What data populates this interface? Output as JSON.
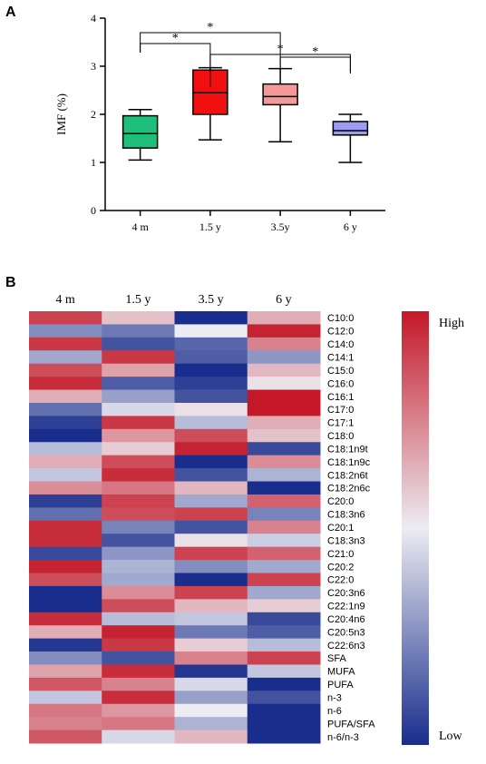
{
  "panels": {
    "a": "A",
    "b": "B"
  },
  "chart_data": [
    {
      "type": "box",
      "ylabel": "IMF (%)",
      "ylim": [
        0,
        4
      ],
      "yticks": [
        "0",
        "1",
        "2",
        "3",
        "4"
      ],
      "categories": [
        "4 m",
        "1.5 y",
        "3.5y",
        "6 y"
      ],
      "boxes": [
        {
          "min": 1.05,
          "q1": 1.3,
          "median": 1.6,
          "q3": 1.97,
          "max": 2.1,
          "color": "#1dbf7b"
        },
        {
          "min": 1.47,
          "q1": 2.0,
          "median": 2.45,
          "q3": 2.92,
          "max": 2.97,
          "color": "#f01010"
        },
        {
          "min": 1.43,
          "q1": 2.2,
          "median": 2.37,
          "q3": 2.63,
          "max": 2.95,
          "color": "#f49898"
        },
        {
          "min": 1.0,
          "q1": 1.57,
          "median": 1.66,
          "q3": 1.85,
          "max": 2.0,
          "color": "#9c9cf2"
        }
      ],
      "significance": [
        {
          "from": 0,
          "to": 1,
          "label": "*"
        },
        {
          "from": 0,
          "to": 2,
          "label": "*"
        },
        {
          "from": 1,
          "to": 3,
          "label": "*"
        },
        {
          "from": 2,
          "to": 3,
          "label": "*"
        }
      ]
    },
    {
      "type": "heatmap",
      "columns": [
        "4 m",
        "1.5 y",
        "3.5 y",
        "6 y"
      ],
      "rows": [
        "C10:0",
        "C12:0",
        "C14:0",
        "C14:1",
        "C15:0",
        "C16:0",
        "C16:1",
        "C17:0",
        "C17:1",
        "C18:0",
        "C18:1n9t",
        "C18:1n9c",
        "C18:2n6t",
        "C18:2n6c",
        "C20:0",
        "C18:3n6",
        "C20:1",
        "C18:3n3",
        "C21:0",
        "C20:2",
        "C22:0",
        "C20:3n6",
        "C22:1n9",
        "C20:4n6",
        "C20:5n3",
        "C22:6n3",
        "SFA",
        "MUFA",
        "PUFA",
        "n-3",
        "n-6",
        "PUFA/SFA",
        "n-6/n-3"
      ],
      "values": [
        [
          0.8,
          0.2,
          -1.0,
          0.3
        ],
        [
          -0.5,
          -0.6,
          0.0,
          0.95
        ],
        [
          0.85,
          -0.8,
          -0.7,
          0.5
        ],
        [
          -0.35,
          0.85,
          -0.75,
          -0.45
        ],
        [
          0.75,
          0.35,
          -1.0,
          0.25
        ],
        [
          0.9,
          -0.75,
          -0.9,
          0.05
        ],
        [
          0.3,
          -0.4,
          -0.8,
          1.0
        ],
        [
          -0.65,
          -0.1,
          0.05,
          1.0
        ],
        [
          -0.9,
          0.85,
          -0.25,
          0.3
        ],
        [
          -1.0,
          0.4,
          0.75,
          0.2
        ],
        [
          -0.25,
          0.15,
          0.95,
          -0.85
        ],
        [
          0.3,
          0.75,
          -1.0,
          0.45
        ],
        [
          -0.2,
          0.9,
          -0.8,
          -0.3
        ],
        [
          0.45,
          0.55,
          0.25,
          -1.0
        ],
        [
          -0.9,
          0.8,
          -0.35,
          0.65
        ],
        [
          -0.65,
          0.75,
          0.8,
          -0.55
        ],
        [
          0.9,
          -0.55,
          -0.8,
          0.5
        ],
        [
          0.9,
          -0.8,
          0.05,
          -0.15
        ],
        [
          -0.85,
          -0.45,
          0.8,
          0.65
        ],
        [
          0.95,
          -0.3,
          -0.5,
          -0.35
        ],
        [
          0.75,
          -0.35,
          -1.0,
          0.8
        ],
        [
          -1.0,
          0.45,
          0.8,
          -0.35
        ],
        [
          -1.0,
          0.75,
          0.25,
          0.15
        ],
        [
          0.9,
          -0.25,
          -0.2,
          -0.85
        ],
        [
          0.3,
          0.95,
          -0.6,
          -0.75
        ],
        [
          -0.95,
          0.85,
          0.15,
          -0.25
        ],
        [
          -0.5,
          -0.8,
          0.5,
          0.8
        ],
        [
          0.35,
          0.9,
          -0.95,
          -0.2
        ],
        [
          0.7,
          0.5,
          -0.1,
          -1.0
        ],
        [
          -0.2,
          0.9,
          -0.4,
          -0.8
        ],
        [
          0.55,
          0.4,
          0.0,
          -1.0
        ],
        [
          0.5,
          0.55,
          -0.3,
          -1.0
        ],
        [
          0.7,
          -0.1,
          0.25,
          -1.0
        ]
      ],
      "legend": {
        "high": "High",
        "low": "Low"
      }
    }
  ]
}
